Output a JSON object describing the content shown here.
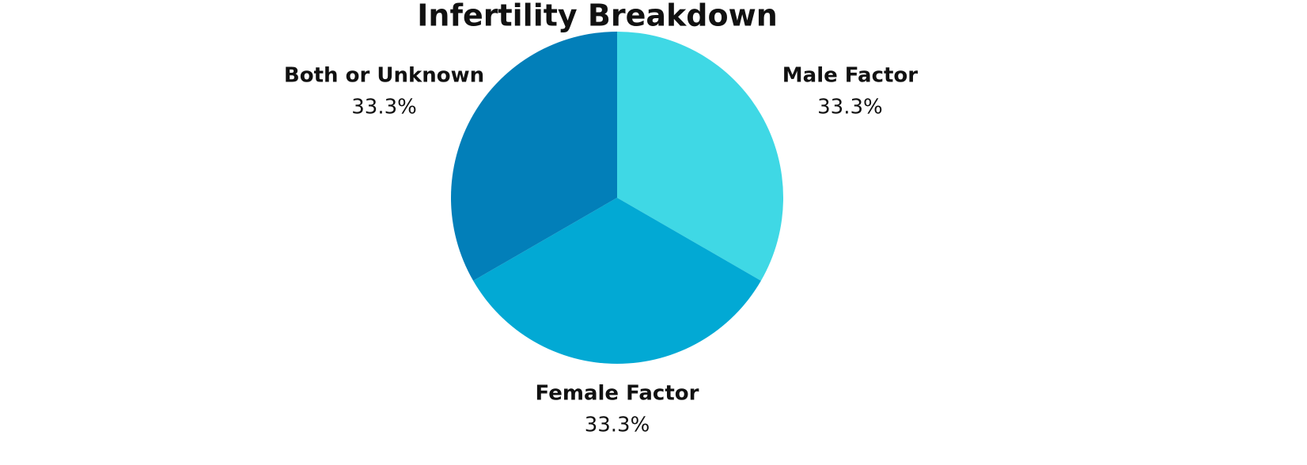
{
  "chart_data": {
    "type": "pie",
    "title": "Infertility Breakdown",
    "categories": [
      "Male Factor",
      "Female Factor",
      "Both or Unknown"
    ],
    "values": [
      33.3,
      33.3,
      33.3
    ],
    "value_labels": [
      "33.3%",
      "33.3%",
      "33.3%"
    ],
    "colors": [
      "#3fd8e5",
      "#02a9d4",
      "#027fb9"
    ]
  }
}
